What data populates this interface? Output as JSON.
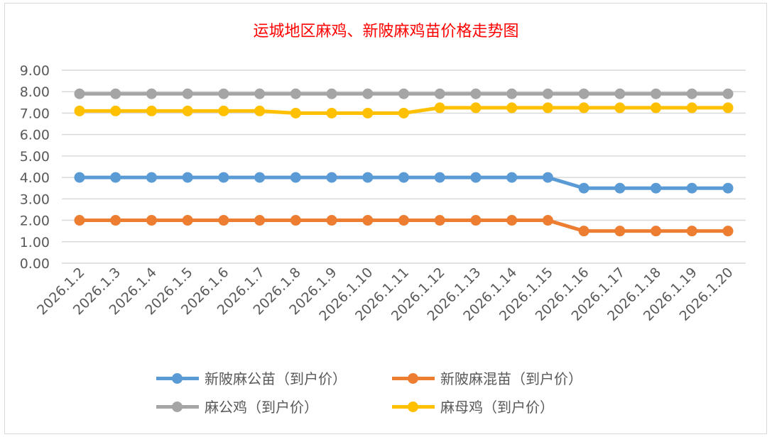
{
  "chart_data": {
    "type": "line",
    "title": "运城地区麻鸡、新陂麻鸡苗价格走势图",
    "xlabel": "",
    "ylabel": "",
    "ylim": [
      0,
      9
    ],
    "yticks": [
      "0.00",
      "1.00",
      "2.00",
      "3.00",
      "4.00",
      "5.00",
      "6.00",
      "7.00",
      "8.00",
      "9.00"
    ],
    "grid": true,
    "legend_position": "bottom",
    "categories": [
      "2026.1.2",
      "2026.1.3",
      "2026.1.4",
      "2026.1.5",
      "2026.1.6",
      "2026.1.7",
      "2026.1.8",
      "2026.1.9",
      "2026.1.10",
      "2026.1.11",
      "2026.1.12",
      "2026.1.13",
      "2026.1.14",
      "2026.1.15",
      "2026.1.16",
      "2026.1.17",
      "2026.1.18",
      "2026.1.19",
      "2026.1.20"
    ],
    "series": [
      {
        "name": "新陂麻公苗（到户价）",
        "color": "#5b9bd5",
        "values": [
          4,
          4,
          4,
          4,
          4,
          4,
          4,
          4,
          4,
          4,
          4,
          4,
          4,
          4,
          3.5,
          3.5,
          3.5,
          3.5,
          3.5
        ]
      },
      {
        "name": "新陂麻混苗（到户价）",
        "color": "#ed7d31",
        "values": [
          2,
          2,
          2,
          2,
          2,
          2,
          2,
          2,
          2,
          2,
          2,
          2,
          2,
          2,
          1.5,
          1.5,
          1.5,
          1.5,
          1.5
        ]
      },
      {
        "name": "麻公鸡（到户价）",
        "color": "#a5a5a5",
        "values": [
          7.9,
          7.9,
          7.9,
          7.9,
          7.9,
          7.9,
          7.9,
          7.9,
          7.9,
          7.9,
          7.9,
          7.9,
          7.9,
          7.9,
          7.9,
          7.9,
          7.9,
          7.9,
          7.9
        ]
      },
      {
        "name": "麻母鸡（到户价）",
        "color": "#ffc000",
        "values": [
          7.1,
          7.1,
          7.1,
          7.1,
          7.1,
          7.1,
          7.0,
          7.0,
          7.0,
          7.0,
          7.25,
          7.25,
          7.25,
          7.25,
          7.25,
          7.25,
          7.25,
          7.25,
          7.25
        ]
      }
    ]
  }
}
